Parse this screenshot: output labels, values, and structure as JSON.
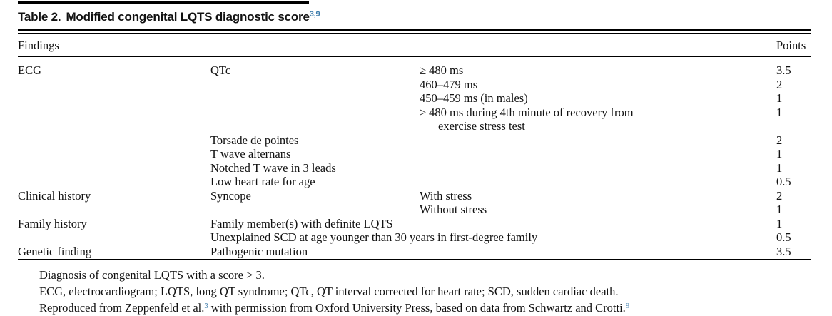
{
  "colors": {
    "ref_blue": "#3d7cab",
    "text": "#111111",
    "rule": "#000000"
  },
  "title": {
    "label": "Table 2.",
    "text": "Modified congenital LQTS diagnostic score",
    "refs": "3,9"
  },
  "columns": {
    "findings": "Findings",
    "points": "Points"
  },
  "rows": [
    {
      "category": "ECG",
      "finding": "QTc",
      "criteria": "≥ 480 ms",
      "points": "3.5"
    },
    {
      "criteria": "460–479 ms",
      "points": "2"
    },
    {
      "criteria": "450–459 ms (in males)",
      "points": "1"
    },
    {
      "criteria": "≥ 480 ms during 4th minute of recovery from",
      "criteria2": "exercise stress test",
      "points": "1"
    },
    {
      "finding": "Torsade de pointes",
      "points": "2"
    },
    {
      "finding": "T wave alternans",
      "points": "1"
    },
    {
      "finding": "Notched T wave in 3 leads",
      "points": "1"
    },
    {
      "finding": "Low heart rate for age",
      "points": "0.5"
    },
    {
      "category": "Clinical history",
      "finding": "Syncope",
      "criteria": "With stress",
      "points": "2"
    },
    {
      "criteria": "Without stress",
      "points": "1"
    },
    {
      "category": "Family history",
      "finding": "Family member(s) with definite LQTS",
      "points": "1"
    },
    {
      "finding": "Unexplained SCD at age younger than 30 years in first-degree family",
      "points": "0.5"
    },
    {
      "category": "Genetic finding",
      "finding": "Pathogenic mutation",
      "points": "3.5"
    }
  ],
  "footnotes": {
    "line1": "Diagnosis of congenital LQTS with a score > 3.",
    "line2": "ECG, electrocardiogram; LQTS, long QT syndrome; QTc, QT interval corrected for heart rate; SCD, sudden cardiac death.",
    "line3_pre": "Reproduced from Zeppenfeld et al.",
    "line3_ref1": "3",
    "line3_mid": " with permission from Oxford University Press, based on data from Schwartz and Crotti.",
    "line3_ref2": "9"
  }
}
